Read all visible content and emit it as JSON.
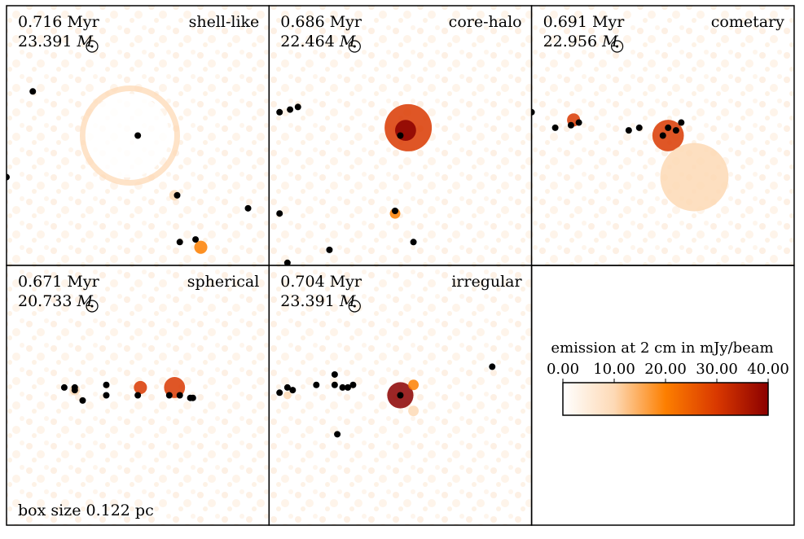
{
  "chart_data": {
    "type": "heatmap",
    "title": "",
    "colors": {
      "cmap_low": "#ffffff",
      "cmap_mid1": "#fdd9b5",
      "cmap_mid2": "#fd7f00",
      "cmap_mid3": "#d93800",
      "cmap_high": "#8b0000",
      "sink": "#000000"
    },
    "colorbar": {
      "label": "emission at 2 cm in mJy/beam",
      "ticks": [
        "0.00",
        "10.00",
        "20.00",
        "30.00",
        "40.00"
      ],
      "range": [
        0,
        40
      ]
    },
    "box_size_label": "box size 0.122 pc",
    "panels": [
      {
        "time": "0.716 Myr",
        "mass": "23.391",
        "mass_unit": "M",
        "morphology": "shell-like",
        "sinks": [
          [
            0.1,
            0.33
          ],
          [
            0.5,
            0.5
          ],
          [
            0.65,
            0.73
          ],
          [
            0.92,
            0.78
          ],
          [
            0.66,
            0.91
          ],
          [
            0.72,
            0.9
          ],
          [
            0.0,
            0.66
          ]
        ],
        "features": [
          {
            "kind": "ring",
            "cx": 0.47,
            "cy": 0.5,
            "r": 0.18,
            "peak": 8
          },
          {
            "kind": "blob",
            "cx": 0.46,
            "cy": 0.5,
            "r": 0.16,
            "peak": 3
          },
          {
            "kind": "blob",
            "cx": 0.74,
            "cy": 0.93,
            "r": 0.025,
            "peak": 20
          },
          {
            "kind": "blob",
            "cx": 0.64,
            "cy": 0.73,
            "r": 0.02,
            "peak": 12
          }
        ]
      },
      {
        "time": "0.686 Myr",
        "mass": "22.464",
        "mass_unit": "M",
        "morphology": "core-halo",
        "sinks": [
          [
            0.04,
            0.41
          ],
          [
            0.08,
            0.4
          ],
          [
            0.11,
            0.39
          ],
          [
            0.5,
            0.5
          ],
          [
            0.04,
            0.8
          ],
          [
            0.48,
            0.79
          ],
          [
            0.23,
            0.94
          ],
          [
            0.55,
            0.91
          ],
          [
            0.07,
            0.99
          ]
        ],
        "features": [
          {
            "kind": "blob",
            "cx": 0.53,
            "cy": 0.47,
            "r": 0.09,
            "peak": 28
          },
          {
            "kind": "blob",
            "cx": 0.52,
            "cy": 0.48,
            "r": 0.04,
            "peak": 40
          },
          {
            "kind": "blob",
            "cx": 0.48,
            "cy": 0.8,
            "r": 0.02,
            "peak": 22
          }
        ]
      },
      {
        "time": "0.691 Myr",
        "mass": "22.956",
        "mass_unit": "M",
        "morphology": "cometary",
        "sinks": [
          [
            0.0,
            0.41
          ],
          [
            0.09,
            0.47
          ],
          [
            0.15,
            0.46
          ],
          [
            0.18,
            0.45
          ],
          [
            0.37,
            0.48
          ],
          [
            0.41,
            0.47
          ],
          [
            0.5,
            0.5
          ],
          [
            0.52,
            0.47
          ],
          [
            0.55,
            0.48
          ],
          [
            0.57,
            0.45
          ]
        ],
        "features": [
          {
            "kind": "blob",
            "cx": 0.52,
            "cy": 0.5,
            "r": 0.06,
            "peak": 35
          },
          {
            "kind": "blob",
            "cx": 0.16,
            "cy": 0.44,
            "r": 0.025,
            "peak": 30
          },
          {
            "kind": "blob",
            "cx": 0.62,
            "cy": 0.66,
            "r": 0.13,
            "peak": 6
          }
        ]
      },
      {
        "time": "0.671 Myr",
        "mass": "20.733",
        "mass_unit": "M",
        "morphology": "spherical",
        "sinks": [
          [
            0.22,
            0.47
          ],
          [
            0.26,
            0.48
          ],
          [
            0.26,
            0.47
          ],
          [
            0.29,
            0.52
          ],
          [
            0.38,
            0.46
          ],
          [
            0.38,
            0.5
          ],
          [
            0.5,
            0.5
          ],
          [
            0.62,
            0.5
          ],
          [
            0.66,
            0.5
          ],
          [
            0.7,
            0.51
          ],
          [
            0.71,
            0.51
          ]
        ],
        "features": [
          {
            "kind": "blob",
            "cx": 0.64,
            "cy": 0.47,
            "r": 0.04,
            "peak": 30
          },
          {
            "kind": "blob",
            "cx": 0.51,
            "cy": 0.47,
            "r": 0.025,
            "peak": 28
          },
          {
            "kind": "blob",
            "cx": 0.26,
            "cy": 0.48,
            "r": 0.02,
            "peak": 15
          }
        ]
      },
      {
        "time": "0.704 Myr",
        "mass": "23.391",
        "mass_unit": "M",
        "morphology": "irregular",
        "sinks": [
          [
            0.04,
            0.49
          ],
          [
            0.07,
            0.47
          ],
          [
            0.09,
            0.48
          ],
          [
            0.18,
            0.46
          ],
          [
            0.25,
            0.42
          ],
          [
            0.25,
            0.46
          ],
          [
            0.28,
            0.47
          ],
          [
            0.3,
            0.47
          ],
          [
            0.32,
            0.46
          ],
          [
            0.5,
            0.5
          ],
          [
            0.85,
            0.39
          ],
          [
            0.26,
            0.65
          ]
        ],
        "features": [
          {
            "kind": "blob",
            "cx": 0.5,
            "cy": 0.5,
            "r": 0.05,
            "peak": 38
          },
          {
            "kind": "blob",
            "cx": 0.55,
            "cy": 0.46,
            "r": 0.02,
            "peak": 20
          },
          {
            "kind": "blob",
            "cx": 0.55,
            "cy": 0.56,
            "r": 0.02,
            "peak": 12
          },
          {
            "kind": "blob",
            "cx": 0.07,
            "cy": 0.5,
            "r": 0.015,
            "peak": 10
          }
        ]
      }
    ]
  }
}
